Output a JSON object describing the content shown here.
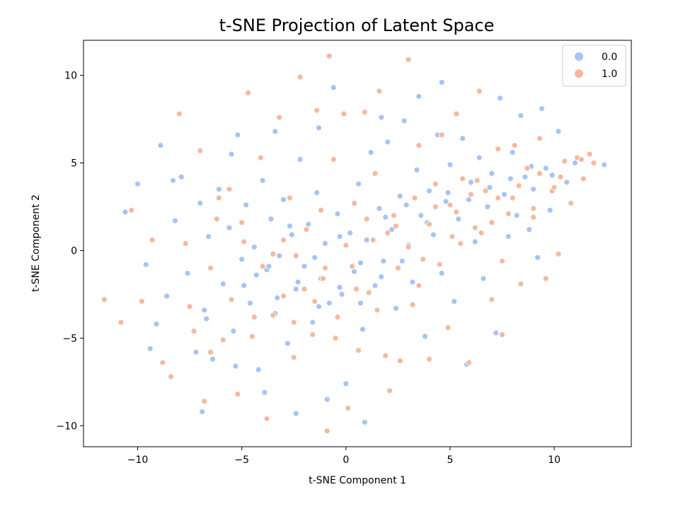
{
  "chart_data": {
    "type": "scatter",
    "title": "t-SNE Projection of Latent Space",
    "xlabel": "t-SNE Component 1",
    "ylabel": "t-SNE Component 2",
    "xlim": [
      -12.6,
      13.7
    ],
    "ylim": [
      -11.2,
      12.0
    ],
    "x_ticks": [
      -10,
      -5,
      0,
      5,
      10
    ],
    "y_ticks": [
      -10,
      -5,
      0,
      5,
      10
    ],
    "x_tick_labels": [
      "−10",
      "−5",
      "0",
      "5",
      "10"
    ],
    "y_tick_labels": [
      "−10",
      "−5",
      "0",
      "5",
      "10"
    ],
    "grid": false,
    "legend_position": "top-right",
    "series": [
      {
        "name": "0.0",
        "color": "#a6c4f7",
        "points": [
          [
            -10.0,
            3.8
          ],
          [
            -9.6,
            -0.8
          ],
          [
            -9.1,
            -4.2
          ],
          [
            -8.9,
            6.0
          ],
          [
            -8.6,
            -2.6
          ],
          [
            -8.2,
            1.7
          ],
          [
            -7.9,
            4.2
          ],
          [
            -7.6,
            -1.3
          ],
          [
            -7.2,
            -5.8
          ],
          [
            -7.0,
            2.7
          ],
          [
            -6.8,
            -3.4
          ],
          [
            -6.6,
            0.8
          ],
          [
            -6.4,
            -6.2
          ],
          [
            -6.1,
            3.5
          ],
          [
            -5.9,
            -1.9
          ],
          [
            -5.6,
            1.3
          ],
          [
            -5.4,
            -4.6
          ],
          [
            -5.2,
            6.6
          ],
          [
            -5.0,
            -0.5
          ],
          [
            -4.8,
            2.6
          ],
          [
            -4.6,
            -3.0
          ],
          [
            -4.4,
            0.2
          ],
          [
            -4.2,
            -6.8
          ],
          [
            -4.0,
            4.0
          ],
          [
            -3.8,
            -1.1
          ],
          [
            -3.6,
            1.8
          ],
          [
            -3.4,
            -3.6
          ],
          [
            -3.2,
            -0.3
          ],
          [
            -3.0,
            2.9
          ],
          [
            -2.8,
            -5.3
          ],
          [
            -2.6,
            0.9
          ],
          [
            -2.4,
            -2.2
          ],
          [
            -2.2,
            5.2
          ],
          [
            -2.0,
            -0.9
          ],
          [
            -1.8,
            1.5
          ],
          [
            -1.6,
            -4.1
          ],
          [
            -1.4,
            3.3
          ],
          [
            -1.2,
            -1.6
          ],
          [
            -1.0,
            0.4
          ],
          [
            -0.8,
            -3.0
          ],
          [
            -0.6,
            9.3
          ],
          [
            -0.4,
            2.1
          ],
          [
            -0.2,
            -2.5
          ],
          [
            0.0,
            -7.6
          ],
          [
            0.2,
            1.0
          ],
          [
            0.4,
            -1.2
          ],
          [
            0.6,
            3.8
          ],
          [
            0.8,
            -4.5
          ],
          [
            1.0,
            0.6
          ],
          [
            1.2,
            5.6
          ],
          [
            1.4,
            -2.0
          ],
          [
            1.6,
            2.4
          ],
          [
            1.8,
            -0.6
          ],
          [
            2.0,
            6.2
          ],
          [
            2.2,
            1.2
          ],
          [
            2.4,
            -3.3
          ],
          [
            2.6,
            3.1
          ],
          [
            2.8,
            7.4
          ],
          [
            3.0,
            0.3
          ],
          [
            3.2,
            -1.8
          ],
          [
            3.4,
            4.6
          ],
          [
            3.6,
            2.0
          ],
          [
            3.8,
            -4.9
          ],
          [
            4.0,
            3.4
          ],
          [
            4.2,
            0.9
          ],
          [
            4.4,
            6.6
          ],
          [
            4.6,
            -1.3
          ],
          [
            4.8,
            2.8
          ],
          [
            5.0,
            4.9
          ],
          [
            5.2,
            -2.9
          ],
          [
            5.4,
            1.8
          ],
          [
            5.6,
            6.4
          ],
          [
            5.8,
            -6.5
          ],
          [
            6.0,
            3.9
          ],
          [
            6.2,
            0.5
          ],
          [
            6.4,
            5.3
          ],
          [
            6.6,
            -1.6
          ],
          [
            6.8,
            2.5
          ],
          [
            7.0,
            4.4
          ],
          [
            7.2,
            -4.7
          ],
          [
            7.4,
            8.7
          ],
          [
            7.6,
            3.2
          ],
          [
            7.8,
            0.8
          ],
          [
            8.0,
            5.6
          ],
          [
            8.2,
            2.0
          ],
          [
            8.4,
            7.7
          ],
          [
            8.6,
            4.2
          ],
          [
            8.8,
            1.2
          ],
          [
            9.0,
            3.5
          ],
          [
            9.2,
            -0.4
          ],
          [
            9.4,
            8.1
          ],
          [
            9.6,
            4.7
          ],
          [
            9.8,
            2.3
          ],
          [
            10.2,
            6.8
          ],
          [
            10.6,
            3.9
          ],
          [
            11.0,
            5.0
          ],
          [
            12.4,
            4.9
          ],
          [
            -10.6,
            2.2
          ],
          [
            -9.4,
            -5.6
          ],
          [
            -8.3,
            4.0
          ],
          [
            -6.9,
            -9.2
          ],
          [
            -5.3,
            -6.6
          ],
          [
            -3.9,
            -8.1
          ],
          [
            -2.4,
            -9.3
          ],
          [
            -0.9,
            -8.5
          ],
          [
            0.9,
            -9.8
          ],
          [
            -1.3,
            7.0
          ],
          [
            -3.4,
            6.8
          ],
          [
            -5.5,
            5.5
          ],
          [
            1.7,
            7.6
          ],
          [
            3.5,
            8.8
          ],
          [
            4.6,
            9.6
          ],
          [
            -6.7,
            -3.9
          ],
          [
            -4.9,
            -2.0
          ],
          [
            -3.7,
            -0.9
          ],
          [
            -2.7,
            1.4
          ],
          [
            -1.5,
            -0.4
          ],
          [
            -0.3,
            0.8
          ],
          [
            0.7,
            -0.7
          ],
          [
            1.9,
            1.9
          ],
          [
            2.9,
            2.6
          ],
          [
            3.9,
            1.6
          ],
          [
            4.9,
            3.3
          ],
          [
            5.9,
            2.9
          ],
          [
            6.9,
            3.6
          ],
          [
            7.9,
            4.1
          ],
          [
            8.9,
            4.8
          ],
          [
            9.9,
            4.3
          ],
          [
            -4.3,
            -1.4
          ],
          [
            -3.3,
            -2.7
          ],
          [
            -2.3,
            -1.8
          ],
          [
            -1.3,
            -3.2
          ],
          [
            -0.3,
            -2.1
          ],
          [
            0.7,
            -3.0
          ],
          [
            1.7,
            -1.5
          ],
          [
            2.7,
            -0.6
          ]
        ]
      },
      {
        "name": "1.0",
        "color": "#f7b99e",
        "points": [
          [
            -11.6,
            -2.8
          ],
          [
            -10.8,
            -4.1
          ],
          [
            -10.3,
            2.3
          ],
          [
            -9.8,
            -2.9
          ],
          [
            -9.3,
            0.6
          ],
          [
            -8.8,
            -6.4
          ],
          [
            -8.4,
            -7.2
          ],
          [
            -8.0,
            7.8
          ],
          [
            -7.7,
            0.4
          ],
          [
            -7.3,
            -4.6
          ],
          [
            -7.0,
            5.7
          ],
          [
            -6.8,
            -8.6
          ],
          [
            -6.5,
            -1.0
          ],
          [
            -6.2,
            1.8
          ],
          [
            -5.9,
            -5.1
          ],
          [
            -5.6,
            3.5
          ],
          [
            -5.2,
            -8.2
          ],
          [
            -4.9,
            0.5
          ],
          [
            -4.7,
            9.0
          ],
          [
            -4.4,
            -3.8
          ],
          [
            -4.1,
            5.3
          ],
          [
            -3.8,
            -9.6
          ],
          [
            -3.5,
            -0.2
          ],
          [
            -3.2,
            7.6
          ],
          [
            -3.0,
            -2.6
          ],
          [
            -2.7,
            3.0
          ],
          [
            -2.5,
            -6.1
          ],
          [
            -2.2,
            9.9
          ],
          [
            -1.9,
            1.2
          ],
          [
            -1.6,
            -4.8
          ],
          [
            -1.4,
            8.0
          ],
          [
            -1.1,
            -1.6
          ],
          [
            -0.9,
            -10.3
          ],
          [
            -0.6,
            5.2
          ],
          [
            -0.4,
            -3.8
          ],
          [
            -0.1,
            7.8
          ],
          [
            0.1,
            -9.0
          ],
          [
            0.4,
            2.7
          ],
          [
            0.6,
            -5.7
          ],
          [
            0.9,
            7.9
          ],
          [
            1.1,
            -2.4
          ],
          [
            1.4,
            4.4
          ],
          [
            1.6,
            9.1
          ],
          [
            1.9,
            -6.0
          ],
          [
            2.1,
            -8.0
          ],
          [
            2.4,
            1.4
          ],
          [
            2.6,
            -6.3
          ],
          [
            3.0,
            10.9
          ],
          [
            3.2,
            -3.1
          ],
          [
            3.5,
            6.0
          ],
          [
            3.7,
            -0.5
          ],
          [
            4.0,
            -6.2
          ],
          [
            4.3,
            2.5
          ],
          [
            4.6,
            6.6
          ],
          [
            4.9,
            -4.4
          ],
          [
            5.1,
            0.8
          ],
          [
            5.3,
            7.8
          ],
          [
            5.6,
            4.1
          ],
          [
            5.9,
            -6.4
          ],
          [
            6.2,
            1.3
          ],
          [
            6.4,
            9.1
          ],
          [
            6.7,
            3.4
          ],
          [
            7.0,
            -2.8
          ],
          [
            7.3,
            5.8
          ],
          [
            7.5,
            -4.8
          ],
          [
            7.8,
            2.1
          ],
          [
            8.1,
            6.0
          ],
          [
            8.4,
            -1.9
          ],
          [
            8.7,
            4.7
          ],
          [
            9.0,
            2.4
          ],
          [
            9.3,
            6.4
          ],
          [
            9.6,
            -1.6
          ],
          [
            9.9,
            3.4
          ],
          [
            10.2,
            -0.2
          ],
          [
            10.5,
            5.1
          ],
          [
            10.8,
            2.7
          ],
          [
            11.1,
            5.3
          ],
          [
            11.4,
            4.1
          ],
          [
            11.7,
            5.5
          ],
          [
            11.9,
            5.0
          ],
          [
            -0.8,
            11.1
          ],
          [
            -2.4,
            -0.3
          ],
          [
            -1.2,
            2.3
          ],
          [
            0.3,
            -0.9
          ],
          [
            1.3,
            0.6
          ],
          [
            2.3,
            2.0
          ],
          [
            3.3,
            3.0
          ],
          [
            4.3,
            3.8
          ],
          [
            5.3,
            2.2
          ],
          [
            6.3,
            4.0
          ],
          [
            7.3,
            3.0
          ],
          [
            8.3,
            3.7
          ],
          [
            9.3,
            4.4
          ],
          [
            10.3,
            4.2
          ],
          [
            11.3,
            5.2
          ],
          [
            -6.1,
            3.0
          ],
          [
            -5.0,
            1.6
          ],
          [
            -4.0,
            -0.9
          ],
          [
            -3.0,
            0.6
          ],
          [
            -2.0,
            -2.2
          ],
          [
            -1.0,
            -1.0
          ],
          [
            0.0,
            0.3
          ],
          [
            1.0,
            1.8
          ],
          [
            2.0,
            1.0
          ],
          [
            3.0,
            0.2
          ],
          [
            4.0,
            1.5
          ],
          [
            5.0,
            2.6
          ],
          [
            6.0,
            3.2
          ],
          [
            7.0,
            1.6
          ],
          [
            8.0,
            3.0
          ],
          [
            9.0,
            1.9
          ],
          [
            10.0,
            3.6
          ],
          [
            -7.5,
            -3.2
          ],
          [
            -6.5,
            -5.8
          ],
          [
            -5.5,
            -2.8
          ],
          [
            -4.5,
            -4.9
          ],
          [
            -3.5,
            -3.7
          ],
          [
            -2.5,
            -4.1
          ],
          [
            -1.5,
            -2.9
          ],
          [
            -0.5,
            -5.0
          ],
          [
            0.5,
            -2.2
          ],
          [
            1.5,
            -3.4
          ],
          [
            2.5,
            -1.0
          ],
          [
            3.5,
            -2.0
          ],
          [
            4.5,
            -0.8
          ],
          [
            5.5,
            0.4
          ],
          [
            6.5,
            1.0
          ],
          [
            7.5,
            -0.6
          ]
        ]
      }
    ]
  }
}
